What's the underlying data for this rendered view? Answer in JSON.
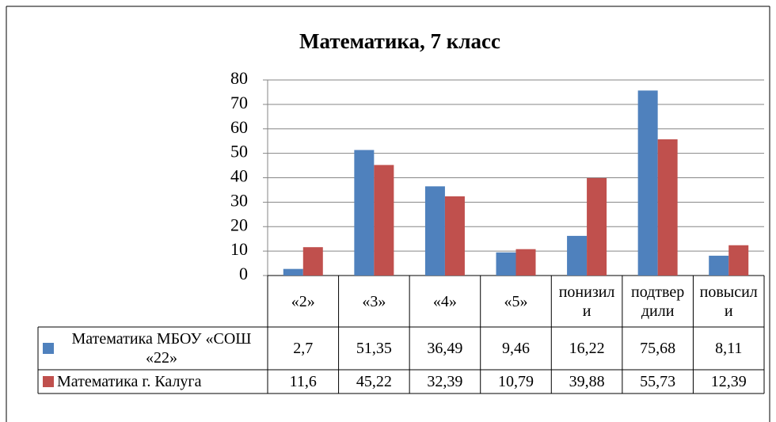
{
  "chart_data": {
    "type": "bar",
    "title": "Математика, 7 класс",
    "categories": [
      "«2»",
      "«3»",
      "«4»",
      "«5»",
      "понизили",
      "подтвердили",
      "повысили"
    ],
    "series": [
      {
        "name": "Математика МБОУ «СОШ «22»",
        "color": "#4f81bd",
        "values": [
          2.7,
          51.35,
          36.49,
          9.46,
          16.22,
          75.68,
          8.11
        ],
        "value_labels": [
          "2,7",
          "51,35",
          "36,49",
          "9,46",
          "16,22",
          "75,68",
          "8,11"
        ]
      },
      {
        "name": "Математика г. Калуга",
        "color": "#c0504d",
        "values": [
          11.6,
          45.22,
          32.39,
          10.79,
          39.88,
          55.73,
          12.39
        ],
        "value_labels": [
          "11,6",
          "45,22",
          "32,39",
          "10,79",
          "39,88",
          "55,73",
          "12,39"
        ]
      }
    ],
    "ylim": [
      0,
      80
    ],
    "yticks": [
      0,
      10,
      20,
      30,
      40,
      50,
      60,
      70,
      80
    ],
    "grid": true
  }
}
